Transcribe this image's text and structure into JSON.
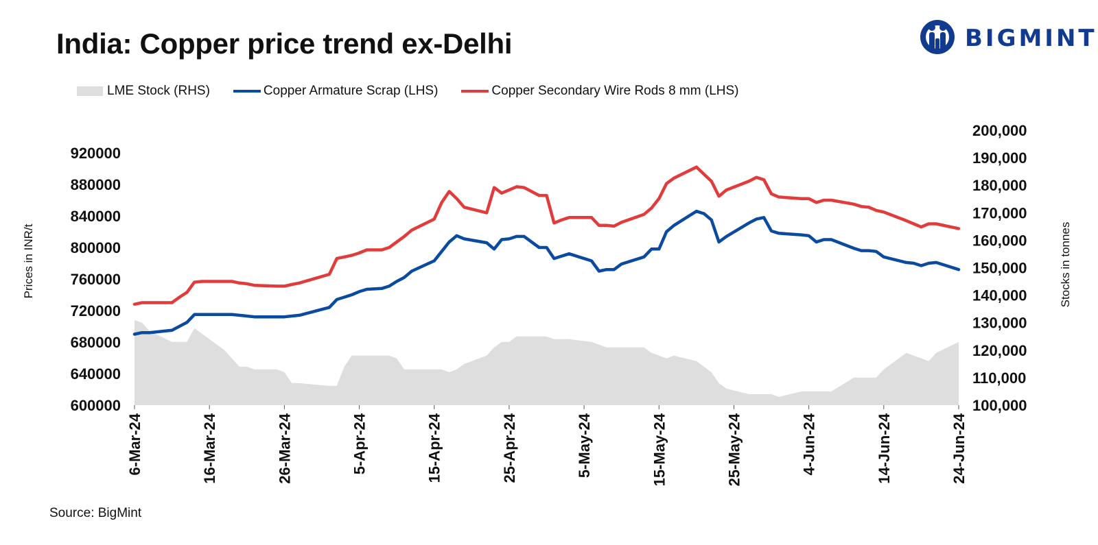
{
  "header": {
    "title": "India: Copper price trend ex-Delhi",
    "logo_text": "BIGMINT"
  },
  "legend": {
    "items": [
      {
        "label": "LME Stock (RHS)",
        "color": "#dedede"
      },
      {
        "label": "Copper Armature Scrap (LHS)",
        "color": "#0a4a9f"
      },
      {
        "label": "Copper Secondary Wire Rods 8 mm (LHS)",
        "color": "#e23b3b"
      }
    ]
  },
  "footer": {
    "source": "Source: BigMint"
  },
  "chart_data": {
    "type": "line",
    "title": "India: Copper price trend ex-Delhi",
    "x_start": "6-Mar-24",
    "x_end": "24-Jun-24",
    "x_ticks": [
      "6-Mar-24",
      "16-Mar-24",
      "26-Mar-24",
      "5-Apr-24",
      "15-Apr-24",
      "25-Apr-24",
      "5-May-24",
      "15-May-24",
      "25-May-24",
      "4-Jun-24",
      "14-Jun-24",
      "24-Jun-24"
    ],
    "y_left": {
      "label": "Prices in INR/t",
      "min": 600000,
      "max": 920000,
      "ticks": [
        "600000",
        "640000",
        "680000",
        "720000",
        "760000",
        "800000",
        "840000",
        "880000",
        "920000"
      ]
    },
    "y_right": {
      "label": "Stocks in tonnes",
      "min": 100000,
      "max": 200000,
      "ticks": [
        "100,000",
        "110,000",
        "120,000",
        "130,000",
        "140,000",
        "150,000",
        "160,000",
        "170,000",
        "180,000",
        "190,000",
        "200,000"
      ]
    },
    "legend_position": "top-left",
    "grid": false,
    "series": [
      {
        "name": "LME Stock (RHS)",
        "type": "area",
        "axis": "right",
        "color": "#dedede",
        "x": [
          "6-Mar-24",
          "7-Mar-24",
          "8-Mar-24",
          "11-Mar-24",
          "12-Mar-24",
          "13-Mar-24",
          "14-Mar-24",
          "15-Mar-24",
          "18-Mar-24",
          "19-Mar-24",
          "20-Mar-24",
          "21-Mar-24",
          "22-Mar-24",
          "25-Mar-24",
          "26-Mar-24",
          "27-Mar-24",
          "28-Mar-24",
          "1-Apr-24",
          "2-Apr-24",
          "3-Apr-24",
          "4-Apr-24",
          "5-Apr-24",
          "6-Apr-24",
          "8-Apr-24",
          "9-Apr-24",
          "10-Apr-24",
          "11-Apr-24",
          "12-Apr-24",
          "15-Apr-24",
          "16-Apr-24",
          "17-Apr-24",
          "18-Apr-24",
          "19-Apr-24",
          "22-Apr-24",
          "23-Apr-24",
          "24-Apr-24",
          "25-Apr-24",
          "26-Apr-24",
          "29-Apr-24",
          "30-Apr-24",
          "1-May-24",
          "2-May-24",
          "3-May-24",
          "6-May-24",
          "7-May-24",
          "8-May-24",
          "9-May-24",
          "10-May-24",
          "13-May-24",
          "14-May-24",
          "15-May-24",
          "16-May-24",
          "17-May-24",
          "20-May-24",
          "21-May-24",
          "22-May-24",
          "23-May-24",
          "24-May-24",
          "27-May-24",
          "28-May-24",
          "29-May-24",
          "30-May-24",
          "31-May-24",
          "3-Jun-24",
          "4-Jun-24",
          "5-Jun-24",
          "6-Jun-24",
          "7-Jun-24",
          "10-Jun-24",
          "11-Jun-24",
          "12-Jun-24",
          "13-Jun-24",
          "14-Jun-24",
          "17-Jun-24",
          "18-Jun-24",
          "19-Jun-24",
          "20-Jun-24",
          "21-Jun-24",
          "24-Jun-24"
        ],
        "values": [
          131000,
          130000,
          127000,
          123000,
          123000,
          123000,
          128000,
          126000,
          120000,
          117000,
          114000,
          114000,
          113000,
          113000,
          112000,
          108000,
          108000,
          107000,
          107000,
          114000,
          118000,
          118000,
          118000,
          118000,
          118000,
          117000,
          113000,
          113000,
          113000,
          113000,
          112000,
          113000,
          115000,
          118000,
          121000,
          123000,
          123000,
          125000,
          125000,
          125000,
          124000,
          124000,
          124000,
          123000,
          122000,
          121000,
          121000,
          121000,
          121000,
          119000,
          118000,
          117000,
          118000,
          116000,
          114000,
          112000,
          108000,
          106000,
          104000,
          104000,
          104000,
          104000,
          103000,
          105000,
          105000,
          105000,
          105000,
          105000,
          110000,
          110000,
          110000,
          110000,
          113000,
          119000,
          118000,
          117000,
          116000,
          119000,
          123000
        ]
      },
      {
        "name": "Copper Armature Scrap (LHS)",
        "type": "line",
        "axis": "left",
        "color": "#0a4a9f",
        "x": [
          "6-Mar-24",
          "7-Mar-24",
          "8-Mar-24",
          "11-Mar-24",
          "12-Mar-24",
          "13-Mar-24",
          "14-Mar-24",
          "15-Mar-24",
          "18-Mar-24",
          "19-Mar-24",
          "20-Mar-24",
          "21-Mar-24",
          "22-Mar-24",
          "25-Mar-24",
          "26-Mar-24",
          "27-Mar-24",
          "28-Mar-24",
          "1-Apr-24",
          "2-Apr-24",
          "3-Apr-24",
          "4-Apr-24",
          "5-Apr-24",
          "6-Apr-24",
          "8-Apr-24",
          "9-Apr-24",
          "10-Apr-24",
          "11-Apr-24",
          "12-Apr-24",
          "15-Apr-24",
          "16-Apr-24",
          "17-Apr-24",
          "18-Apr-24",
          "19-Apr-24",
          "22-Apr-24",
          "23-Apr-24",
          "24-Apr-24",
          "25-Apr-24",
          "26-Apr-24",
          "27-Apr-24",
          "29-Apr-24",
          "30-Apr-24",
          "1-May-24",
          "2-May-24",
          "3-May-24",
          "6-May-24",
          "7-May-24",
          "8-May-24",
          "9-May-24",
          "10-May-24",
          "13-May-24",
          "14-May-24",
          "15-May-24",
          "16-May-24",
          "17-May-24",
          "20-May-24",
          "21-May-24",
          "22-May-24",
          "23-May-24",
          "24-May-24",
          "27-May-24",
          "28-May-24",
          "29-May-24",
          "30-May-24",
          "31-May-24",
          "3-Jun-24",
          "4-Jun-24",
          "5-Jun-24",
          "6-Jun-24",
          "7-Jun-24",
          "10-Jun-24",
          "11-Jun-24",
          "12-Jun-24",
          "13-Jun-24",
          "14-Jun-24",
          "17-Jun-24",
          "18-Jun-24",
          "19-Jun-24",
          "20-Jun-24",
          "21-Jun-24",
          "24-Jun-24"
        ],
        "values": [
          690000,
          692000,
          692000,
          695000,
          700000,
          705000,
          715000,
          715000,
          715000,
          715000,
          714000,
          713000,
          712000,
          712000,
          712000,
          713000,
          714000,
          724000,
          734000,
          737000,
          740000,
          744000,
          747000,
          748000,
          751000,
          757000,
          762000,
          770000,
          783000,
          795000,
          807000,
          815000,
          811000,
          806000,
          798000,
          810000,
          811000,
          814000,
          814000,
          800000,
          800000,
          786000,
          789000,
          792000,
          783000,
          770000,
          772000,
          772000,
          779000,
          788000,
          798000,
          798000,
          820000,
          828000,
          846000,
          843000,
          835000,
          807000,
          814000,
          831000,
          836000,
          838000,
          821000,
          818000,
          816000,
          815000,
          807000,
          810000,
          810000,
          799000,
          796000,
          796000,
          795000,
          788000,
          781000,
          780000,
          777000,
          780000,
          781000,
          772000
        ]
      },
      {
        "name": "Copper Secondary Wire Rods 8 mm (LHS)",
        "type": "line",
        "axis": "left",
        "color": "#e23b3b",
        "x": [
          "6-Mar-24",
          "7-Mar-24",
          "8-Mar-24",
          "11-Mar-24",
          "12-Mar-24",
          "13-Mar-24",
          "14-Mar-24",
          "15-Mar-24",
          "18-Mar-24",
          "19-Mar-24",
          "20-Mar-24",
          "21-Mar-24",
          "22-Mar-24",
          "25-Mar-24",
          "26-Mar-24",
          "27-Mar-24",
          "28-Mar-24",
          "1-Apr-24",
          "2-Apr-24",
          "3-Apr-24",
          "4-Apr-24",
          "5-Apr-24",
          "6-Apr-24",
          "8-Apr-24",
          "9-Apr-24",
          "10-Apr-24",
          "11-Apr-24",
          "12-Apr-24",
          "15-Apr-24",
          "16-Apr-24",
          "17-Apr-24",
          "18-Apr-24",
          "19-Apr-24",
          "22-Apr-24",
          "23-Apr-24",
          "24-Apr-24",
          "25-Apr-24",
          "26-Apr-24",
          "27-Apr-24",
          "29-Apr-24",
          "30-Apr-24",
          "1-May-24",
          "2-May-24",
          "3-May-24",
          "6-May-24",
          "7-May-24",
          "8-May-24",
          "9-May-24",
          "10-May-24",
          "13-May-24",
          "14-May-24",
          "15-May-24",
          "16-May-24",
          "17-May-24",
          "20-May-24",
          "21-May-24",
          "22-May-24",
          "23-May-24",
          "24-May-24",
          "27-May-24",
          "28-May-24",
          "29-May-24",
          "30-May-24",
          "31-May-24",
          "3-Jun-24",
          "4-Jun-24",
          "5-Jun-24",
          "6-Jun-24",
          "7-Jun-24",
          "10-Jun-24",
          "11-Jun-24",
          "12-Jun-24",
          "13-Jun-24",
          "14-Jun-24",
          "17-Jun-24",
          "18-Jun-24",
          "19-Jun-24",
          "20-Jun-24",
          "21-Jun-24",
          "24-Jun-24"
        ],
        "values": [
          728000,
          730000,
          730000,
          730000,
          737000,
          743000,
          756000,
          757000,
          757000,
          757000,
          755000,
          754000,
          752000,
          751000,
          751000,
          753000,
          755000,
          766000,
          786000,
          788000,
          790000,
          793000,
          797000,
          797000,
          800000,
          807000,
          814000,
          822000,
          836000,
          857000,
          871000,
          862000,
          851000,
          844000,
          876000,
          869000,
          873000,
          877000,
          876000,
          866000,
          866000,
          831000,
          835000,
          838000,
          838000,
          828000,
          828000,
          827000,
          832000,
          842000,
          850000,
          862000,
          881000,
          888000,
          902000,
          893000,
          884000,
          865000,
          873000,
          884000,
          889000,
          886000,
          868000,
          864000,
          862000,
          862000,
          857000,
          860000,
          860000,
          855000,
          852000,
          851000,
          847000,
          845000,
          834000,
          830000,
          826000,
          830000,
          830000,
          824000
        ]
      }
    ]
  }
}
